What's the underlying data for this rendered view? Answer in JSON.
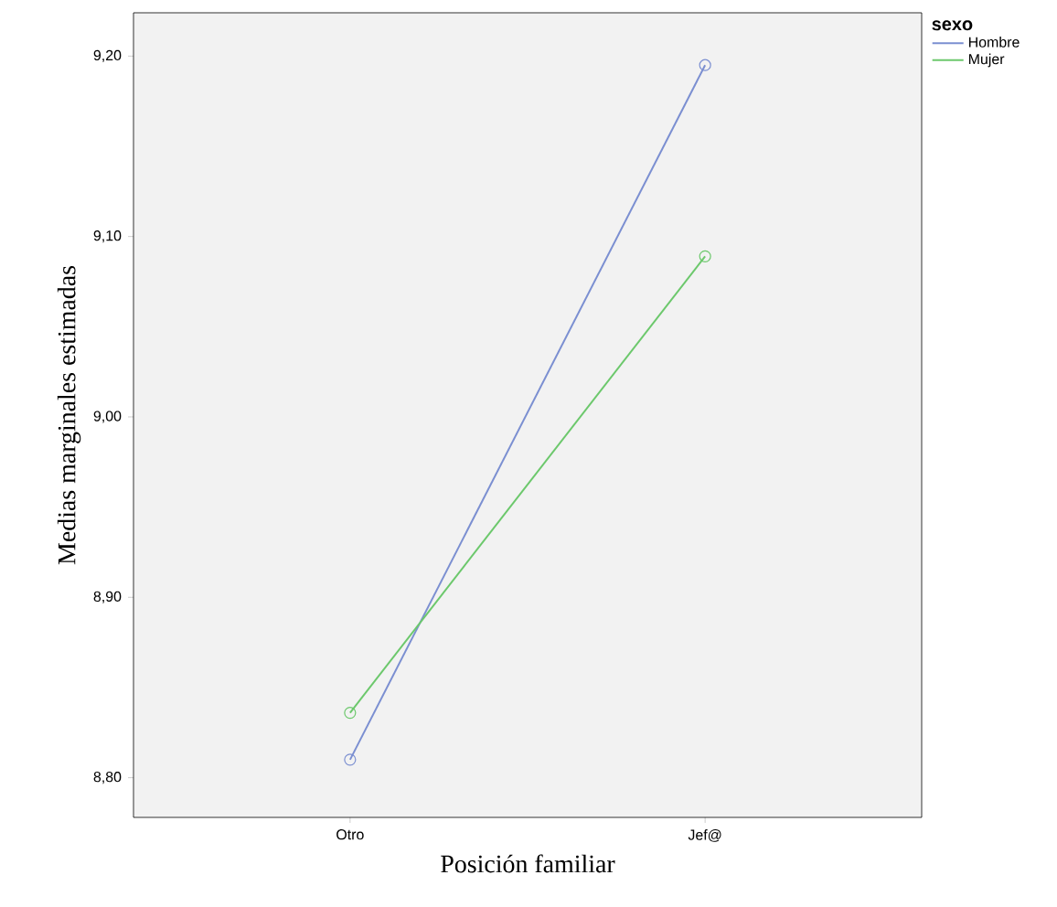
{
  "chart_data": {
    "type": "line",
    "xlabel": "Posición familiar",
    "ylabel": "Medias marginales estimadas",
    "legend_title": "sexo",
    "categories": [
      "Otro",
      "Jef@"
    ],
    "series": [
      {
        "name": "Hombre",
        "color": "#7b8fd1",
        "values": [
          8.81,
          9.195
        ]
      },
      {
        "name": "Mujer",
        "color": "#6cc86c",
        "values": [
          8.836,
          9.089
        ]
      }
    ],
    "ylim": [
      8.778,
      9.224
    ],
    "yticks": [
      {
        "value": 8.8,
        "label": "8,80"
      },
      {
        "value": 8.9,
        "label": "8,90"
      },
      {
        "value": 9.0,
        "label": "9,00"
      },
      {
        "value": 9.1,
        "label": "9,10"
      },
      {
        "value": 9.2,
        "label": "9,20"
      }
    ],
    "legend": "top right",
    "marker": "circle",
    "line_style": "solid",
    "grid": false
  }
}
